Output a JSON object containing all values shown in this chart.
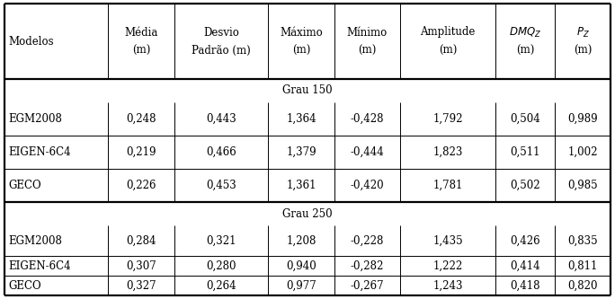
{
  "grau150_label": "Grau 150",
  "grau250_label": "Grau 250",
  "header_col0_line1": "Modelos",
  "header_line1": [
    "Média",
    "Desvio",
    "Máximo",
    "Mínimo",
    "Amplitude",
    "$DMQ_Z$",
    "$P_Z$"
  ],
  "header_line2": [
    "(m)",
    "Padrão (m)",
    "(m)",
    "(m)",
    "(m)",
    "(m)",
    "(m)"
  ],
  "grau150_rows": [
    [
      "EGM2008",
      "0,248",
      "0,443",
      "1,364",
      "-0,428",
      "1,792",
      "0,504",
      "0,989"
    ],
    [
      "EIGEN-6C4",
      "0,219",
      "0,466",
      "1,379",
      "-0,444",
      "1,823",
      "0,511",
      "1,002"
    ],
    [
      "GECO",
      "0,226",
      "0,453",
      "1,361",
      "-0,420",
      "1,781",
      "0,502",
      "0,985"
    ]
  ],
  "grau250_rows": [
    [
      "EGM2008",
      "0,284",
      "0,321",
      "1,208",
      "-0,228",
      "1,435",
      "0,426",
      "0,835"
    ],
    [
      "EIGEN-6C4",
      "0,307",
      "0,280",
      "0,940",
      "-0,282",
      "1,222",
      "0,414",
      "0,811"
    ],
    [
      "GECO",
      "0,327",
      "0,264",
      "0,977",
      "-0,267",
      "1,243",
      "0,418",
      "0,820"
    ]
  ],
  "bg_color": "#ffffff",
  "font_size": 8.5,
  "thin_lw": 0.7,
  "thick_lw": 1.6
}
